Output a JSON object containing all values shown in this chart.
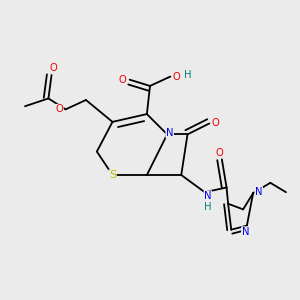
{
  "bg_color": "#ebebeb",
  "atom_colors": {
    "C": "#000000",
    "N": "#0000ee",
    "O": "#ee0000",
    "S": "#bbbb00",
    "H": "#008080"
  },
  "bond_color": "#000000",
  "font_size": 7.2,
  "lw": 1.3
}
